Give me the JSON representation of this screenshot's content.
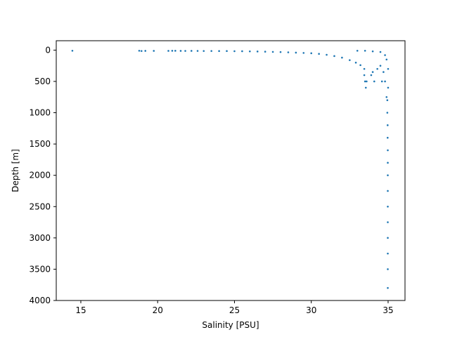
{
  "chart_data": {
    "type": "scatter",
    "title": "",
    "xlabel": "Salinity [PSU]",
    "ylabel": "Depth [m]",
    "xlim": [
      13.4,
      36.1
    ],
    "ylim": [
      4000,
      -150
    ],
    "y_inverted": true,
    "xticks": [
      15,
      20,
      25,
      30,
      35
    ],
    "yticks": [
      0,
      500,
      1000,
      1500,
      2000,
      2500,
      3000,
      3500,
      4000
    ],
    "grid": false,
    "color": "#1f77b4",
    "series": [
      {
        "marker_size": "small",
        "points": [
          [
            14.45,
            10
          ],
          [
            18.8,
            10
          ],
          [
            18.95,
            14
          ],
          [
            19.2,
            12
          ],
          [
            19.75,
            12
          ],
          [
            20.7,
            12
          ],
          [
            20.95,
            11
          ],
          [
            21.15,
            11
          ],
          [
            21.5,
            12
          ],
          [
            21.8,
            13
          ],
          [
            22.2,
            12
          ],
          [
            22.6,
            13
          ],
          [
            23.0,
            14
          ],
          [
            23.5,
            14
          ],
          [
            24.0,
            15
          ],
          [
            24.5,
            15
          ],
          [
            25.0,
            17
          ],
          [
            25.5,
            18
          ],
          [
            26.0,
            20
          ],
          [
            26.5,
            22
          ],
          [
            27.0,
            25
          ],
          [
            27.5,
            28
          ],
          [
            28.0,
            31
          ],
          [
            28.5,
            35
          ],
          [
            29.0,
            40
          ],
          [
            29.5,
            45
          ],
          [
            30.0,
            50
          ],
          [
            30.5,
            60
          ],
          [
            31.0,
            75
          ],
          [
            31.5,
            95
          ],
          [
            32.0,
            120
          ],
          [
            32.5,
            160
          ],
          [
            32.9,
            200
          ],
          [
            33.2,
            240
          ],
          [
            33.45,
            300
          ],
          [
            33.45,
            400
          ],
          [
            33.5,
            500
          ],
          [
            33.55,
            600
          ],
          [
            33.6,
            500
          ],
          [
            33.9,
            400
          ],
          [
            34.0,
            350
          ],
          [
            34.1,
            500
          ],
          [
            34.3,
            300
          ],
          [
            34.5,
            250
          ],
          [
            34.6,
            500
          ],
          [
            34.7,
            350
          ],
          [
            34.8,
            500
          ],
          [
            34.9,
            750
          ],
          [
            34.95,
            800
          ],
          [
            34.95,
            1000
          ],
          [
            34.97,
            1200
          ],
          [
            34.97,
            1400
          ],
          [
            34.98,
            1600
          ],
          [
            34.98,
            1800
          ],
          [
            34.98,
            2000
          ],
          [
            34.98,
            2250
          ],
          [
            34.98,
            2500
          ],
          [
            34.98,
            2750
          ],
          [
            34.98,
            3000
          ],
          [
            34.98,
            3250
          ],
          [
            34.98,
            3500
          ],
          [
            34.98,
            3800
          ],
          [
            33.0,
            10
          ],
          [
            33.5,
            10
          ],
          [
            34.0,
            20
          ],
          [
            34.5,
            30
          ],
          [
            34.8,
            80
          ],
          [
            34.9,
            150
          ],
          [
            35.0,
            300
          ],
          [
            35.0,
            600
          ]
        ]
      }
    ]
  }
}
